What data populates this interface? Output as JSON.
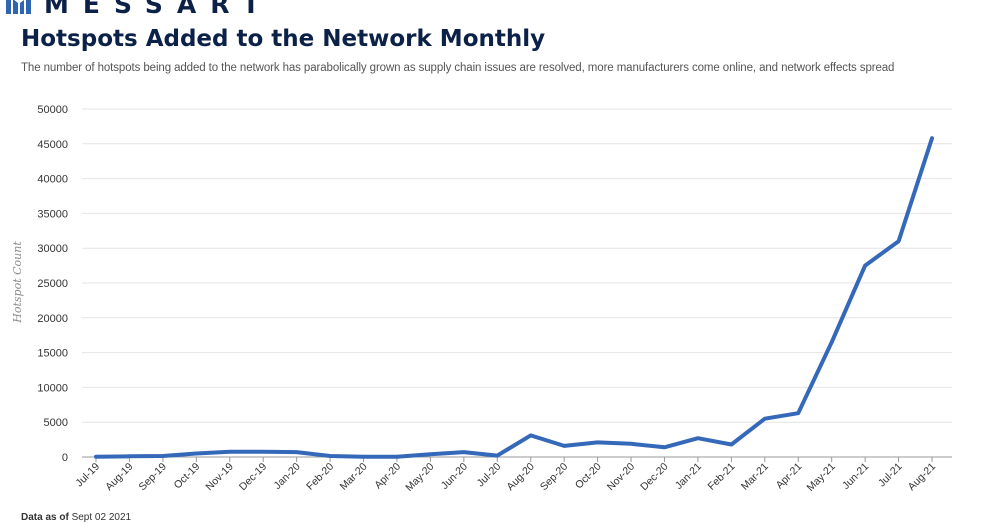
{
  "brand": {
    "name": "MESSART",
    "logo_color": "#2f66b3",
    "text_color": "#0b2147"
  },
  "header": {
    "title": "Hotspots Added to the Network Monthly",
    "subtitle": "The number of hotspots being added to the network has parabolically grown as supply chain issues  are resolved, more manufacturers come online, and network effects spread"
  },
  "footer": {
    "label": "Data as of",
    "date": "Sept 02 2021"
  },
  "chart_data": {
    "type": "line",
    "title": "",
    "xlabel": "",
    "ylabel": "Hotspot Count",
    "ylim": [
      0,
      50000
    ],
    "yticks": [
      0,
      5000,
      10000,
      15000,
      20000,
      25000,
      30000,
      35000,
      40000,
      45000,
      50000
    ],
    "grid": true,
    "line_color": "#3468b8",
    "categories": [
      "Jul-19",
      "Aug-19",
      "Sep-19",
      "Oct-19",
      "Nov-19",
      "Dec-19",
      "Jan-20",
      "Feb-20",
      "Mar-20",
      "Apr-20",
      "May-20",
      "Jun-20",
      "Jul-20",
      "Aug-20",
      "Sep-20",
      "Oct-20",
      "Nov-20",
      "Dec-20",
      "Jan-21",
      "Feb-21",
      "Mar-21",
      "Apr-21",
      "May-21",
      "Jun-21",
      "Jul-21",
      "Aug-21"
    ],
    "series": [
      {
        "values": [
          50,
          100,
          150,
          500,
          750,
          750,
          700,
          150,
          50,
          50,
          400,
          700,
          200,
          3100,
          1600,
          2100,
          1900,
          1400,
          2700,
          1800,
          5500,
          6300,
          16500,
          27500,
          31000,
          45800
        ]
      }
    ]
  }
}
